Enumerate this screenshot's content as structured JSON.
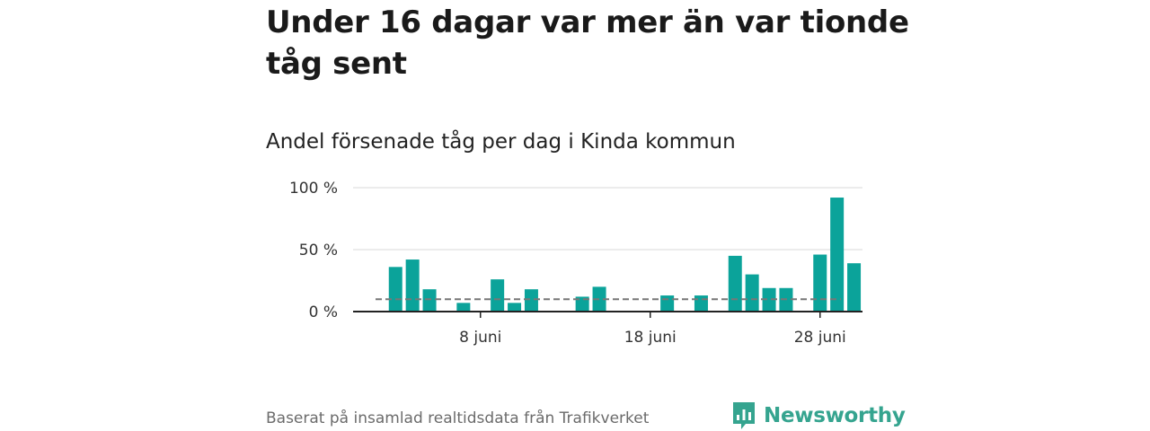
{
  "headline": "Under 16 dagar var mer än var tionde tåg sent",
  "subtitle": "Andel försenade tåg per dag i Kinda kommun",
  "footer": {
    "source": "Baserat på insamlad realtidsdata från Trafikverket",
    "brand": "Newsworthy",
    "brand_icon": "bar-chart-bubble-icon"
  },
  "colors": {
    "bar": "#0ba39a",
    "reference_line": "#777777",
    "brand": "#35a48f"
  },
  "chart_data": {
    "type": "bar",
    "x_unit": "day of June",
    "x_ticks": [
      {
        "day": 8,
        "label": "8 juni"
      },
      {
        "day": 18,
        "label": "18 juni"
      },
      {
        "day": 28,
        "label": "28 juni"
      }
    ],
    "y_ticks": [
      {
        "value": 0,
        "label": "0 %"
      },
      {
        "value": 50,
        "label": "50 %"
      },
      {
        "value": 100,
        "label": "100 %"
      }
    ],
    "ylim": [
      0,
      100
    ],
    "xlim": [
      0.5,
      30.5
    ],
    "grid": true,
    "reference_line": {
      "value": 10,
      "style": "dashed"
    },
    "days": [
      3,
      4,
      5,
      7,
      9,
      10,
      11,
      14,
      15,
      19,
      21,
      23,
      24,
      25,
      26,
      28,
      29,
      30
    ],
    "values": [
      36,
      42,
      18,
      7,
      26,
      7,
      18,
      12,
      20,
      13,
      13,
      45,
      30,
      19,
      19,
      46,
      92,
      39
    ]
  }
}
